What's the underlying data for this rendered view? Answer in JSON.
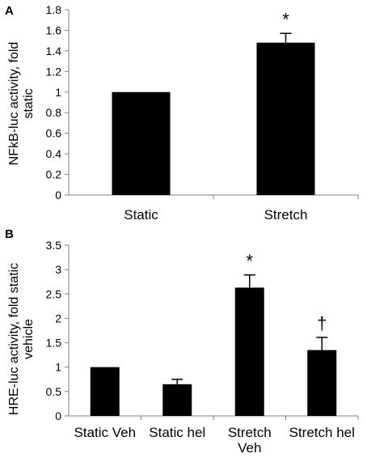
{
  "chart_data": [
    {
      "type": "bar",
      "panel_label": "A",
      "ylabel_lines": [
        "NFkB-luc activity, fold",
        "static"
      ],
      "ylim": [
        0,
        1.8
      ],
      "yticks": [
        "0",
        "0.2",
        "0.4",
        "0.6",
        "0.8",
        "1",
        "1.2",
        "1.4",
        "1.6",
        "1.8"
      ],
      "categories": [
        [
          "Static"
        ],
        [
          "Stretch"
        ]
      ],
      "values": [
        1.0,
        1.48
      ],
      "errors": [
        0,
        0.09
      ],
      "annotations": [
        "",
        "*"
      ],
      "bar_color": "#000000"
    },
    {
      "type": "bar",
      "panel_label": "B",
      "ylabel_lines": [
        "HRE-luc activity, fold static",
        "vehicle"
      ],
      "ylim": [
        0,
        3.5
      ],
      "yticks": [
        "0",
        "0.5",
        "1",
        "1.5",
        "2",
        "2.5",
        "3",
        "3.5"
      ],
      "categories": [
        [
          "Static Veh"
        ],
        [
          "Static hel"
        ],
        [
          "Stretch",
          "Veh"
        ],
        [
          "Stretch hel"
        ]
      ],
      "values": [
        1.0,
        0.65,
        2.63,
        1.35
      ],
      "errors": [
        0,
        0.1,
        0.26,
        0.26
      ],
      "annotations": [
        "",
        "",
        "*",
        "†"
      ],
      "bar_color": "#000000"
    }
  ]
}
